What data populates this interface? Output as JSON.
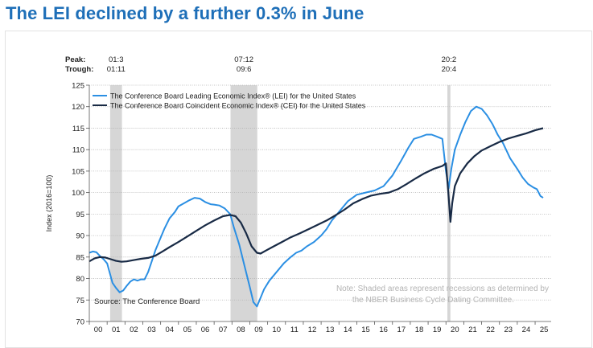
{
  "page": {
    "headline": "The LEI declined by a further 0.3% in June"
  },
  "colors": {
    "headline": "#1e6fb8",
    "lei": "#2b8fe3",
    "cei": "#182a45",
    "recession": "#d6d6d6",
    "grid": "#b3b3b3",
    "note": "#b3b3b3",
    "text": "#222222"
  },
  "chart_data": {
    "type": "line",
    "ylabel": "Index (2016=100)",
    "ylim": [
      70,
      125
    ],
    "yticks": [
      70,
      75,
      80,
      85,
      90,
      95,
      100,
      105,
      110,
      115,
      120,
      125
    ],
    "xlim": [
      2000.0,
      2025.9
    ],
    "xticks": [
      "00",
      "01",
      "02",
      "03",
      "04",
      "05",
      "06",
      "07",
      "08",
      "09",
      "10",
      "11",
      "12",
      "13",
      "14",
      "15",
      "16",
      "17",
      "18",
      "19",
      "20",
      "21",
      "22",
      "23",
      "24",
      "25"
    ],
    "peak_label": "Peak:",
    "trough_label": "Trough:",
    "recessions": [
      {
        "start": 2001.17,
        "end": 2001.83,
        "peak": "01:3",
        "trough": "01:11"
      },
      {
        "start": 2007.92,
        "end": 2009.42,
        "peak": "07:12",
        "trough": "09:6"
      },
      {
        "start": 2020.08,
        "end": 2020.25,
        "peak": "20:2",
        "trough": "20:4"
      }
    ],
    "source": "Source: The Conference Board",
    "note_line1": "Note: Shaded areas represent recessions as determined by",
    "note_line2": "the NBER Business Cycle Dating Committee.",
    "series": [
      {
        "name": "The Conference Board Leading Economic Index® (LEI) for the United States",
        "x": [
          2000.0,
          2000.2,
          2000.4,
          2000.6,
          2000.8,
          2001.0,
          2001.1,
          2001.3,
          2001.5,
          2001.7,
          2001.9,
          2002.1,
          2002.3,
          2002.5,
          2002.7,
          2002.9,
          2003.1,
          2003.3,
          2003.5,
          2003.7,
          2003.9,
          2004.2,
          2004.5,
          2004.8,
          2005.0,
          2005.3,
          2005.6,
          2005.9,
          2006.2,
          2006.5,
          2006.8,
          2007.0,
          2007.3,
          2007.6,
          2007.9,
          2008.1,
          2008.4,
          2008.7,
          2009.0,
          2009.2,
          2009.4,
          2009.6,
          2009.8,
          2010.1,
          2010.5,
          2010.9,
          2011.3,
          2011.6,
          2011.9,
          2012.2,
          2012.6,
          2013.0,
          2013.3,
          2013.6,
          2014.0,
          2014.5,
          2015.0,
          2015.5,
          2016.0,
          2016.5,
          2017.0,
          2017.5,
          2017.9,
          2018.2,
          2018.6,
          2018.9,
          2019.2,
          2019.5,
          2019.8,
          2020.0,
          2020.15,
          2020.3,
          2020.5,
          2020.8,
          2021.1,
          2021.4,
          2021.7,
          2022.0,
          2022.3,
          2022.6,
          2022.9,
          2023.2,
          2023.6,
          2024.0,
          2024.3,
          2024.6,
          2024.9,
          2025.1,
          2025.3,
          2025.45
        ],
        "values": [
          86.0,
          86.3,
          86.1,
          85.2,
          84.5,
          83.5,
          82.0,
          79.0,
          77.8,
          76.8,
          77.2,
          78.3,
          79.3,
          79.8,
          79.5,
          79.8,
          79.8,
          81.5,
          84.0,
          86.5,
          88.5,
          91.5,
          94.0,
          95.5,
          96.8,
          97.5,
          98.2,
          98.8,
          98.6,
          97.8,
          97.3,
          97.2,
          97.0,
          96.3,
          95.0,
          92.0,
          88.0,
          83.0,
          78.0,
          74.5,
          73.5,
          75.5,
          77.5,
          79.5,
          81.5,
          83.5,
          85.0,
          86.0,
          86.5,
          87.5,
          88.5,
          90.0,
          91.5,
          93.5,
          95.5,
          98.0,
          99.5,
          100.0,
          100.5,
          101.5,
          104.0,
          107.5,
          110.5,
          112.5,
          113.0,
          113.5,
          113.5,
          113.0,
          112.5,
          105.0,
          101.0,
          105.5,
          110.0,
          113.5,
          116.5,
          119.0,
          120.0,
          119.5,
          118.0,
          116.0,
          113.5,
          111.5,
          108.0,
          105.5,
          103.5,
          102.0,
          101.2,
          100.8,
          99.2,
          98.8
        ],
        "color": "#2b8fe3"
      },
      {
        "name": "The Conference Board Coincident Economic Index® (CEI) for the United States",
        "x": [
          2000.0,
          2000.3,
          2000.6,
          2000.9,
          2001.2,
          2001.5,
          2001.8,
          2002.1,
          2002.5,
          2002.9,
          2003.3,
          2003.7,
          2004.1,
          2004.5,
          2005.0,
          2005.5,
          2006.0,
          2006.5,
          2007.0,
          2007.5,
          2007.9,
          2008.2,
          2008.5,
          2008.8,
          2009.1,
          2009.4,
          2009.6,
          2009.9,
          2010.3,
          2010.8,
          2011.3,
          2011.8,
          2012.3,
          2012.8,
          2013.3,
          2013.8,
          2014.3,
          2014.8,
          2015.3,
          2015.8,
          2016.3,
          2016.8,
          2017.3,
          2017.8,
          2018.3,
          2018.8,
          2019.3,
          2019.8,
          2020.0,
          2020.15,
          2020.25,
          2020.35,
          2020.5,
          2020.8,
          2021.2,
          2021.6,
          2022.0,
          2022.5,
          2023.0,
          2023.5,
          2024.0,
          2024.5,
          2025.0,
          2025.45
        ],
        "values": [
          84.0,
          84.7,
          85.0,
          84.9,
          84.5,
          84.1,
          83.9,
          84.0,
          84.3,
          84.6,
          84.8,
          85.3,
          86.3,
          87.3,
          88.5,
          89.8,
          91.1,
          92.4,
          93.5,
          94.5,
          94.8,
          94.5,
          93.0,
          90.5,
          87.5,
          86.0,
          85.8,
          86.5,
          87.4,
          88.5,
          89.6,
          90.5,
          91.5,
          92.5,
          93.5,
          94.7,
          96.0,
          97.5,
          98.5,
          99.3,
          99.7,
          100.0,
          100.8,
          102.0,
          103.3,
          104.5,
          105.5,
          106.2,
          106.8,
          99.0,
          93.2,
          97.5,
          101.5,
          104.5,
          106.8,
          108.5,
          109.8,
          110.8,
          111.8,
          112.6,
          113.2,
          113.8,
          114.5,
          115.0
        ],
        "color": "#182a45"
      }
    ]
  }
}
